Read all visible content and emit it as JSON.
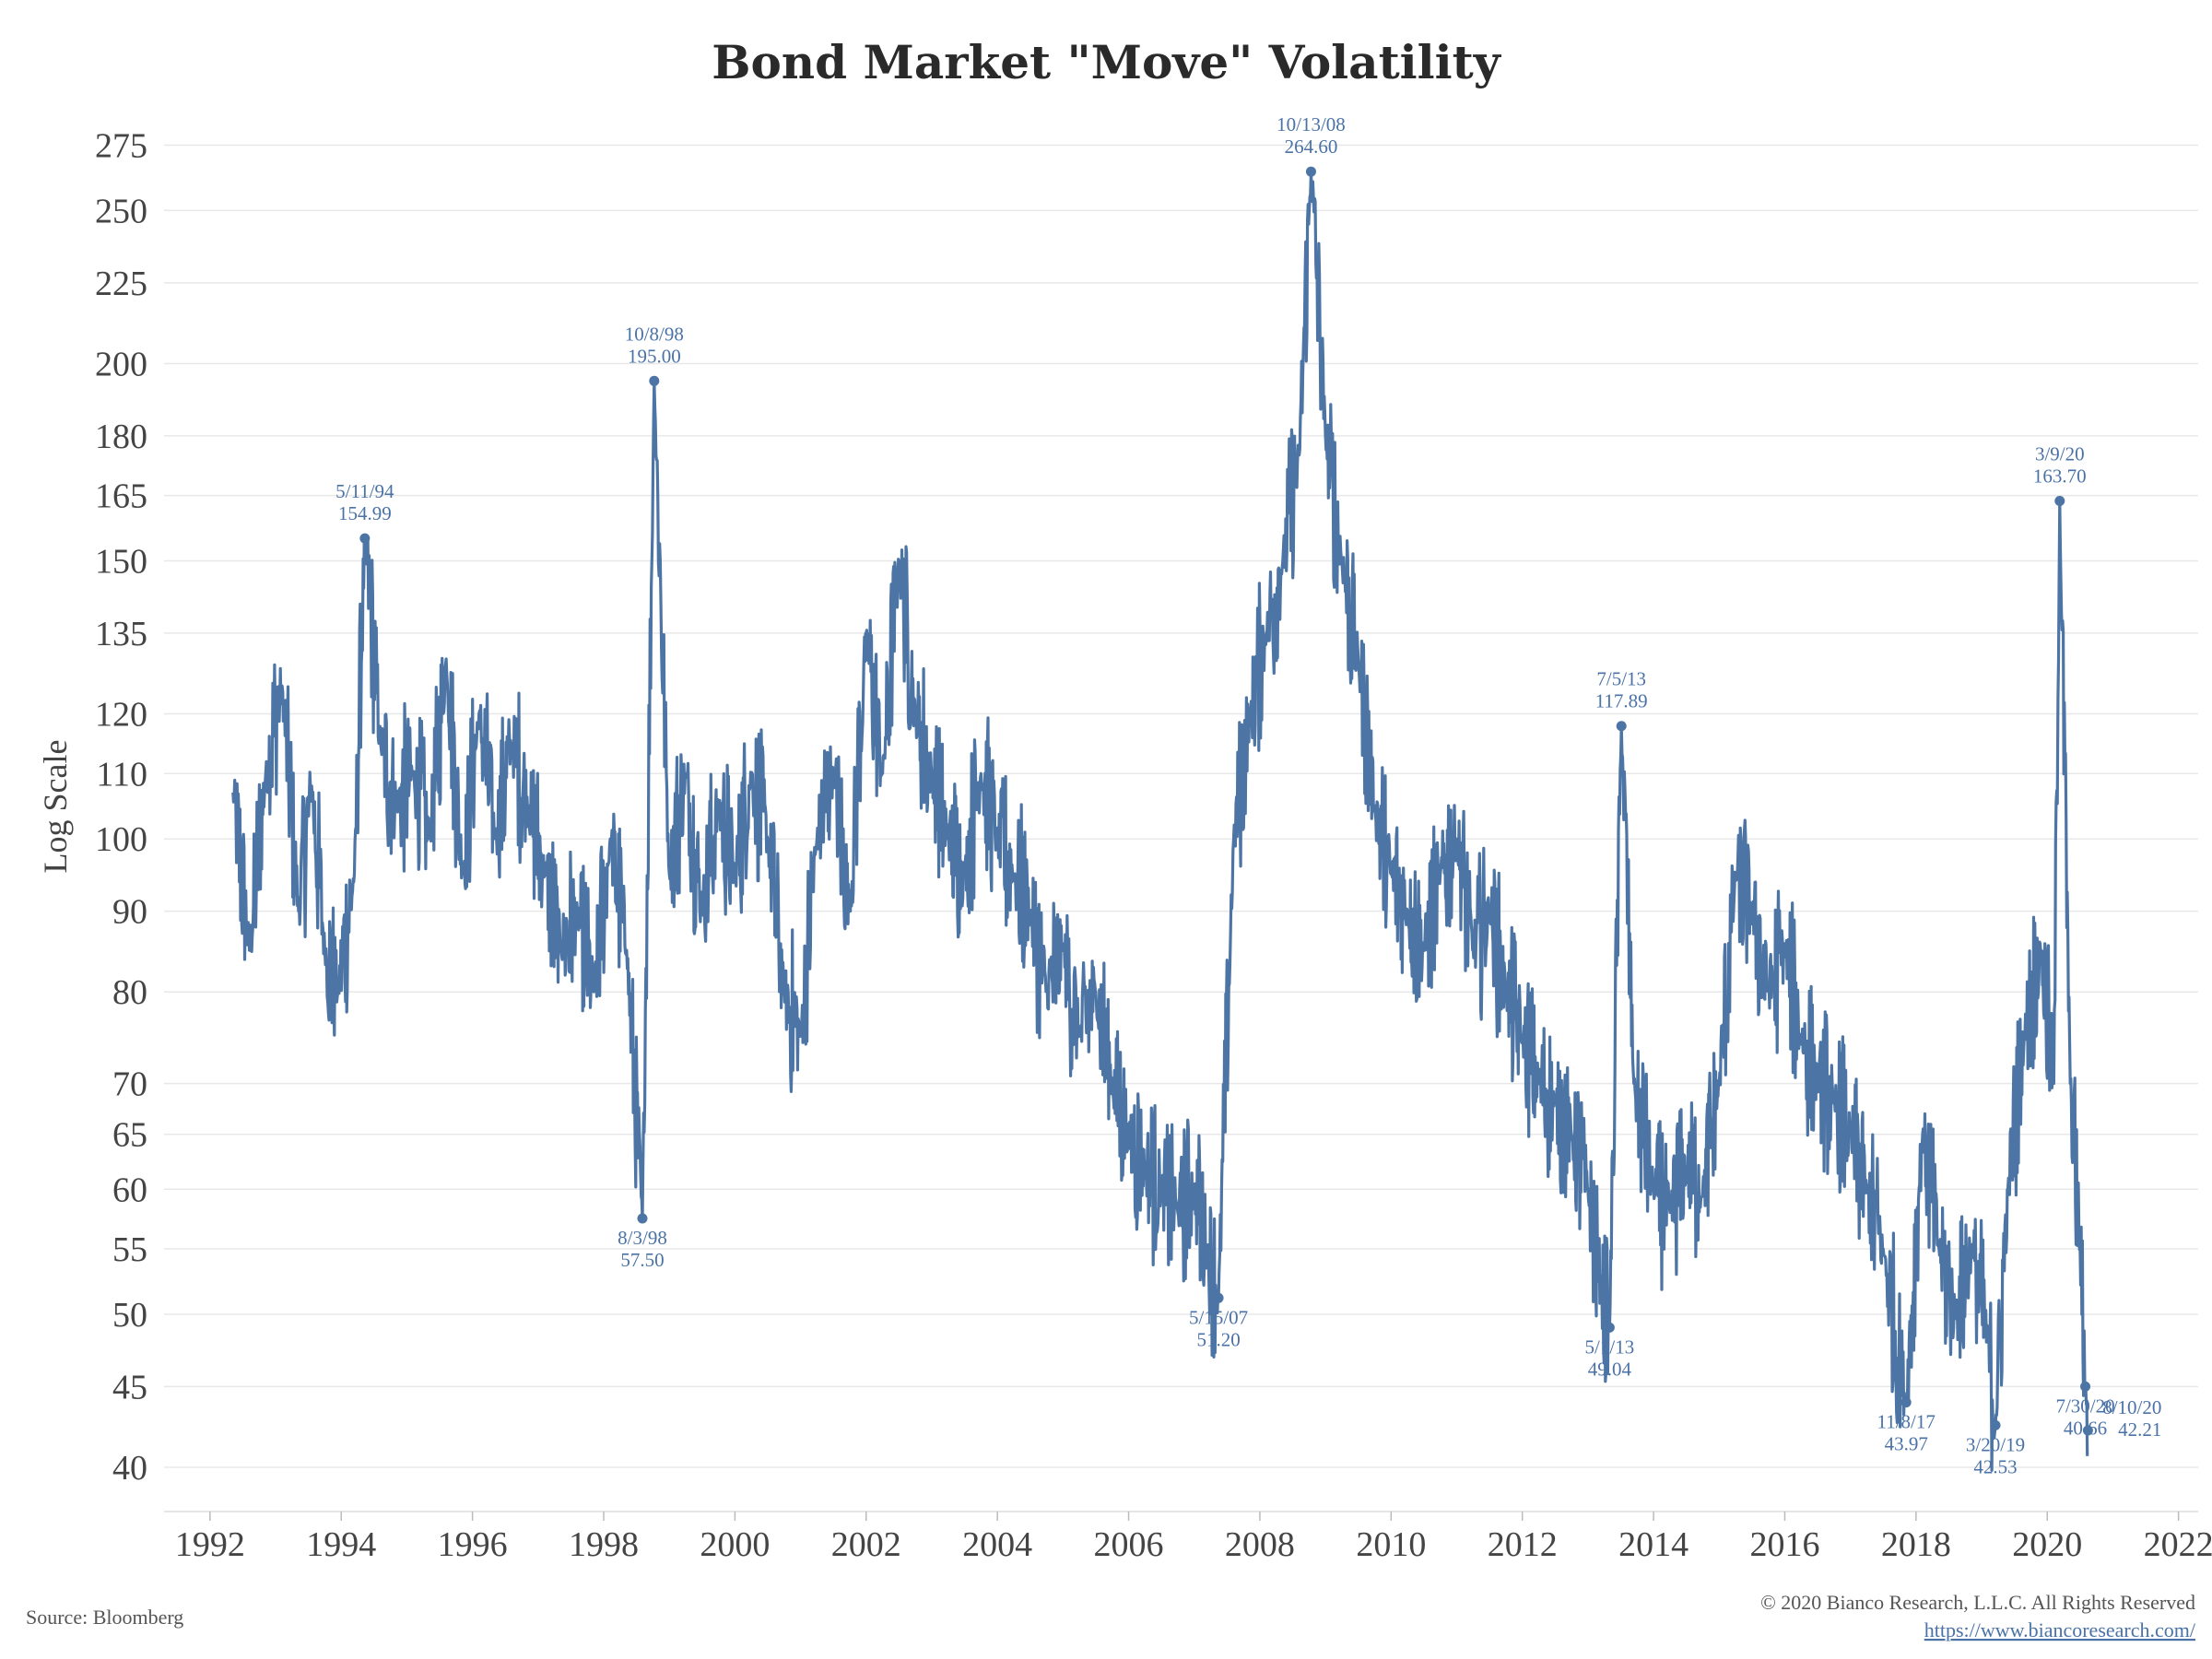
{
  "chart_data": {
    "type": "line",
    "title": "Bond Market \"Move\" Volatility",
    "ylabel": "Log Scale",
    "xlabel": "",
    "y_scale": "log",
    "ylim": [
      37.5,
      290
    ],
    "xlim": [
      1991.3,
      2022.3
    ],
    "y_ticks": [
      40,
      45,
      50,
      55,
      60,
      65,
      70,
      80,
      90,
      100,
      110,
      120,
      135,
      150,
      165,
      180,
      200,
      225,
      250,
      275
    ],
    "x_ticks": [
      1992,
      1994,
      1996,
      1998,
      2000,
      2002,
      2004,
      2006,
      2008,
      2010,
      2012,
      2014,
      2016,
      2018,
      2020,
      2022
    ],
    "grid": "horizontal",
    "series": [
      {
        "color": "#4c74a4",
        "x": [
          1992.35,
          1992.6,
          1992.85,
          1993.1,
          1993.35,
          1993.55,
          1993.75,
          1993.95,
          1994.2,
          1994.36,
          1994.6,
          1994.85,
          1995.1,
          1995.35,
          1995.6,
          1995.85,
          1996.1,
          1996.35,
          1996.6,
          1996.85,
          1997.1,
          1997.35,
          1997.6,
          1997.85,
          1998.1,
          1998.35,
          1998.59,
          1998.77,
          1999.0,
          1999.25,
          1999.5,
          1999.75,
          2000.0,
          2000.25,
          2000.5,
          2000.75,
          2001.0,
          2001.25,
          2001.5,
          2001.75,
          2002.0,
          2002.25,
          2002.5,
          2002.75,
          2003.0,
          2003.25,
          2003.5,
          2003.75,
          2004.0,
          2004.25,
          2004.5,
          2004.75,
          2005.0,
          2005.25,
          2005.5,
          2005.75,
          2006.0,
          2006.25,
          2006.5,
          2006.75,
          2007.0,
          2007.2,
          2007.37,
          2007.6,
          2007.85,
          2008.1,
          2008.35,
          2008.6,
          2008.78,
          2009.0,
          2009.25,
          2009.5,
          2009.75,
          2010.0,
          2010.25,
          2010.5,
          2010.75,
          2011.0,
          2011.25,
          2011.5,
          2011.75,
          2012.0,
          2012.25,
          2012.5,
          2012.75,
          2013.0,
          2013.2,
          2013.33,
          2013.51,
          2013.7,
          2014.0,
          2014.25,
          2014.5,
          2014.75,
          2015.0,
          2015.25,
          2015.5,
          2015.75,
          2016.0,
          2016.25,
          2016.5,
          2016.75,
          2017.0,
          2017.25,
          2017.5,
          2017.85,
          2018.1,
          2018.35,
          2018.6,
          2018.85,
          2019.1,
          2019.21,
          2019.4,
          2019.65,
          2019.9,
          2020.1,
          2020.19,
          2020.35,
          2020.5,
          2020.58,
          2020.61
        ],
        "values": [
          107,
          85,
          110,
          125,
          90,
          108,
          85,
          80,
          95,
          154.99,
          115,
          105,
          110,
          100,
          130,
          95,
          120,
          100,
          115,
          105,
          95,
          85,
          90,
          80,
          100,
          85,
          57.5,
          195.0,
          95,
          110,
          90,
          105,
          95,
          110,
          100,
          80,
          75,
          100,
          110,
          90,
          135,
          110,
          150,
          120,
          110,
          100,
          95,
          110,
          100,
          95,
          90,
          80,
          85,
          75,
          80,
          70,
          65,
          62,
          60,
          58,
          60,
          55,
          51.2,
          100,
          120,
          135,
          150,
          175,
          264.6,
          180,
          150,
          130,
          105,
          95,
          90,
          85,
          95,
          100,
          85,
          90,
          80,
          75,
          70,
          68,
          65,
          60,
          52,
          49.04,
          117.89,
          70,
          60,
          58,
          62,
          60,
          70,
          95,
          90,
          80,
          85,
          75,
          70,
          68,
          65,
          60,
          55,
          43.97,
          65,
          55,
          50,
          55,
          48,
          42.53,
          60,
          75,
          85,
          70,
          163.7,
          70,
          55,
          45,
          40.66
        ]
      }
    ],
    "annotations": [
      {
        "date": "5/11/94",
        "value": "154.99"
      },
      {
        "date": "8/3/98",
        "value": "57.50"
      },
      {
        "date": "10/8/98",
        "value": "195.00"
      },
      {
        "date": "5/15/07",
        "value": "51.20"
      },
      {
        "date": "10/13/08",
        "value": "264.60"
      },
      {
        "date": "5/1/13",
        "value": "49.04"
      },
      {
        "date": "7/5/13",
        "value": "117.89"
      },
      {
        "date": "11/8/17",
        "value": "43.97"
      },
      {
        "date": "3/20/19",
        "value": "42.53"
      },
      {
        "date": "3/9/20",
        "value": "163.70"
      },
      {
        "date": "7/30/20",
        "value": "40.66"
      },
      {
        "date": "8/10/20",
        "value": "42.21"
      }
    ]
  },
  "footer": {
    "source": "Source: Bloomberg",
    "copyright": "© 2020 Bianco Research, L.L.C. All Rights Reserved",
    "url": "https://www.biancoresearch.com/"
  }
}
